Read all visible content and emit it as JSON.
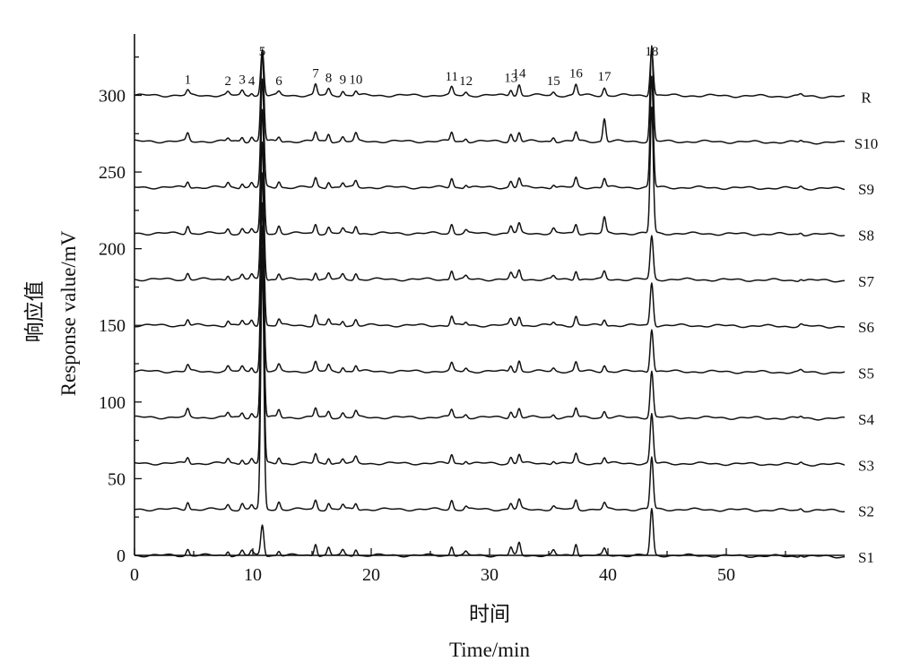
{
  "chart_data": {
    "type": "line",
    "xlabel_cn": "时间",
    "xlabel": "Time/min",
    "ylabel_cn": "响应值",
    "ylabel": "Response value/mV",
    "xlim": [
      0,
      60
    ],
    "ylim": [
      0,
      340
    ],
    "x_ticks": [
      "0",
      "10",
      "20",
      "30",
      "40",
      "50"
    ],
    "y_ticks": [
      "0",
      "50",
      "100",
      "150",
      "200",
      "250",
      "300"
    ],
    "grid": false,
    "line_color": "#111111",
    "peaks": [
      {
        "label": "1",
        "time": 4.5
      },
      {
        "label": "2",
        "time": 7.9
      },
      {
        "label": "3",
        "time": 9.1
      },
      {
        "label": "4",
        "time": 9.9
      },
      {
        "label": "5",
        "time": 10.8
      },
      {
        "label": "6",
        "time": 12.2
      },
      {
        "label": "7",
        "time": 15.3
      },
      {
        "label": "8",
        "time": 16.4
      },
      {
        "label": "9",
        "time": 17.6
      },
      {
        "label": "10",
        "time": 18.7
      },
      {
        "label": "11",
        "time": 26.8
      },
      {
        "label": "12",
        "time": 28.0
      },
      {
        "label": "13",
        "time": 31.8
      },
      {
        "label": "14",
        "time": 32.5
      },
      {
        "label": "15",
        "time": 35.4
      },
      {
        "label": "16",
        "time": 37.3
      },
      {
        "label": "17",
        "time": 39.7
      },
      {
        "label": "18",
        "time": 43.7
      }
    ],
    "series": [
      {
        "name": "R",
        "baseline": 300,
        "heights": [
          3,
          2,
          3,
          2,
          30,
          2,
          7,
          4,
          3,
          3,
          5,
          2,
          4,
          7,
          2,
          7,
          5,
          30
        ]
      },
      {
        "name": "S10",
        "baseline": 270,
        "heights": [
          5,
          2,
          3,
          3,
          58,
          3,
          6,
          5,
          3,
          5,
          6,
          2,
          5,
          6,
          3,
          6,
          15,
          62
        ]
      },
      {
        "name": "S9",
        "baseline": 240,
        "heights": [
          4,
          3,
          3,
          3,
          70,
          4,
          6,
          4,
          3,
          4,
          6,
          2,
          4,
          6,
          2,
          6,
          6,
          72
        ]
      },
      {
        "name": "S8",
        "baseline": 210,
        "heights": [
          5,
          3,
          3,
          3,
          80,
          5,
          6,
          4,
          3,
          5,
          6,
          2,
          5,
          6,
          3,
          6,
          10,
          82
        ]
      },
      {
        "name": "S7",
        "baseline": 180,
        "heights": [
          4,
          3,
          3,
          3,
          90,
          4,
          5,
          4,
          3,
          4,
          6,
          2,
          4,
          6,
          2,
          6,
          5,
          28
        ]
      },
      {
        "name": "S6",
        "baseline": 150,
        "heights": [
          4,
          3,
          3,
          3,
          100,
          4,
          7,
          4,
          3,
          4,
          6,
          2,
          4,
          6,
          2,
          6,
          4,
          28
        ]
      },
      {
        "name": "S5",
        "baseline": 120,
        "heights": [
          4,
          3,
          3,
          3,
          110,
          4,
          6,
          4,
          3,
          4,
          5,
          2,
          4,
          7,
          2,
          6,
          4,
          28
        ]
      },
      {
        "name": "S4",
        "baseline": 90,
        "heights": [
          5,
          3,
          3,
          3,
          125,
          5,
          6,
          4,
          3,
          4,
          5,
          2,
          4,
          6,
          2,
          6,
          4,
          30
        ]
      },
      {
        "name": "S3",
        "baseline": 60,
        "heights": [
          4,
          3,
          3,
          3,
          140,
          4,
          6,
          4,
          3,
          4,
          6,
          2,
          4,
          6,
          2,
          6,
          4,
          32
        ]
      },
      {
        "name": "S2",
        "baseline": 30,
        "heights": [
          5,
          3,
          4,
          3,
          160,
          5,
          6,
          4,
          3,
          4,
          6,
          2,
          4,
          6,
          2,
          6,
          4,
          34
        ]
      },
      {
        "name": "S1",
        "baseline": 0,
        "heights": [
          4,
          3,
          3,
          3,
          20,
          3,
          8,
          5,
          3,
          4,
          6,
          2,
          5,
          8,
          3,
          8,
          4,
          30
        ]
      }
    ]
  }
}
